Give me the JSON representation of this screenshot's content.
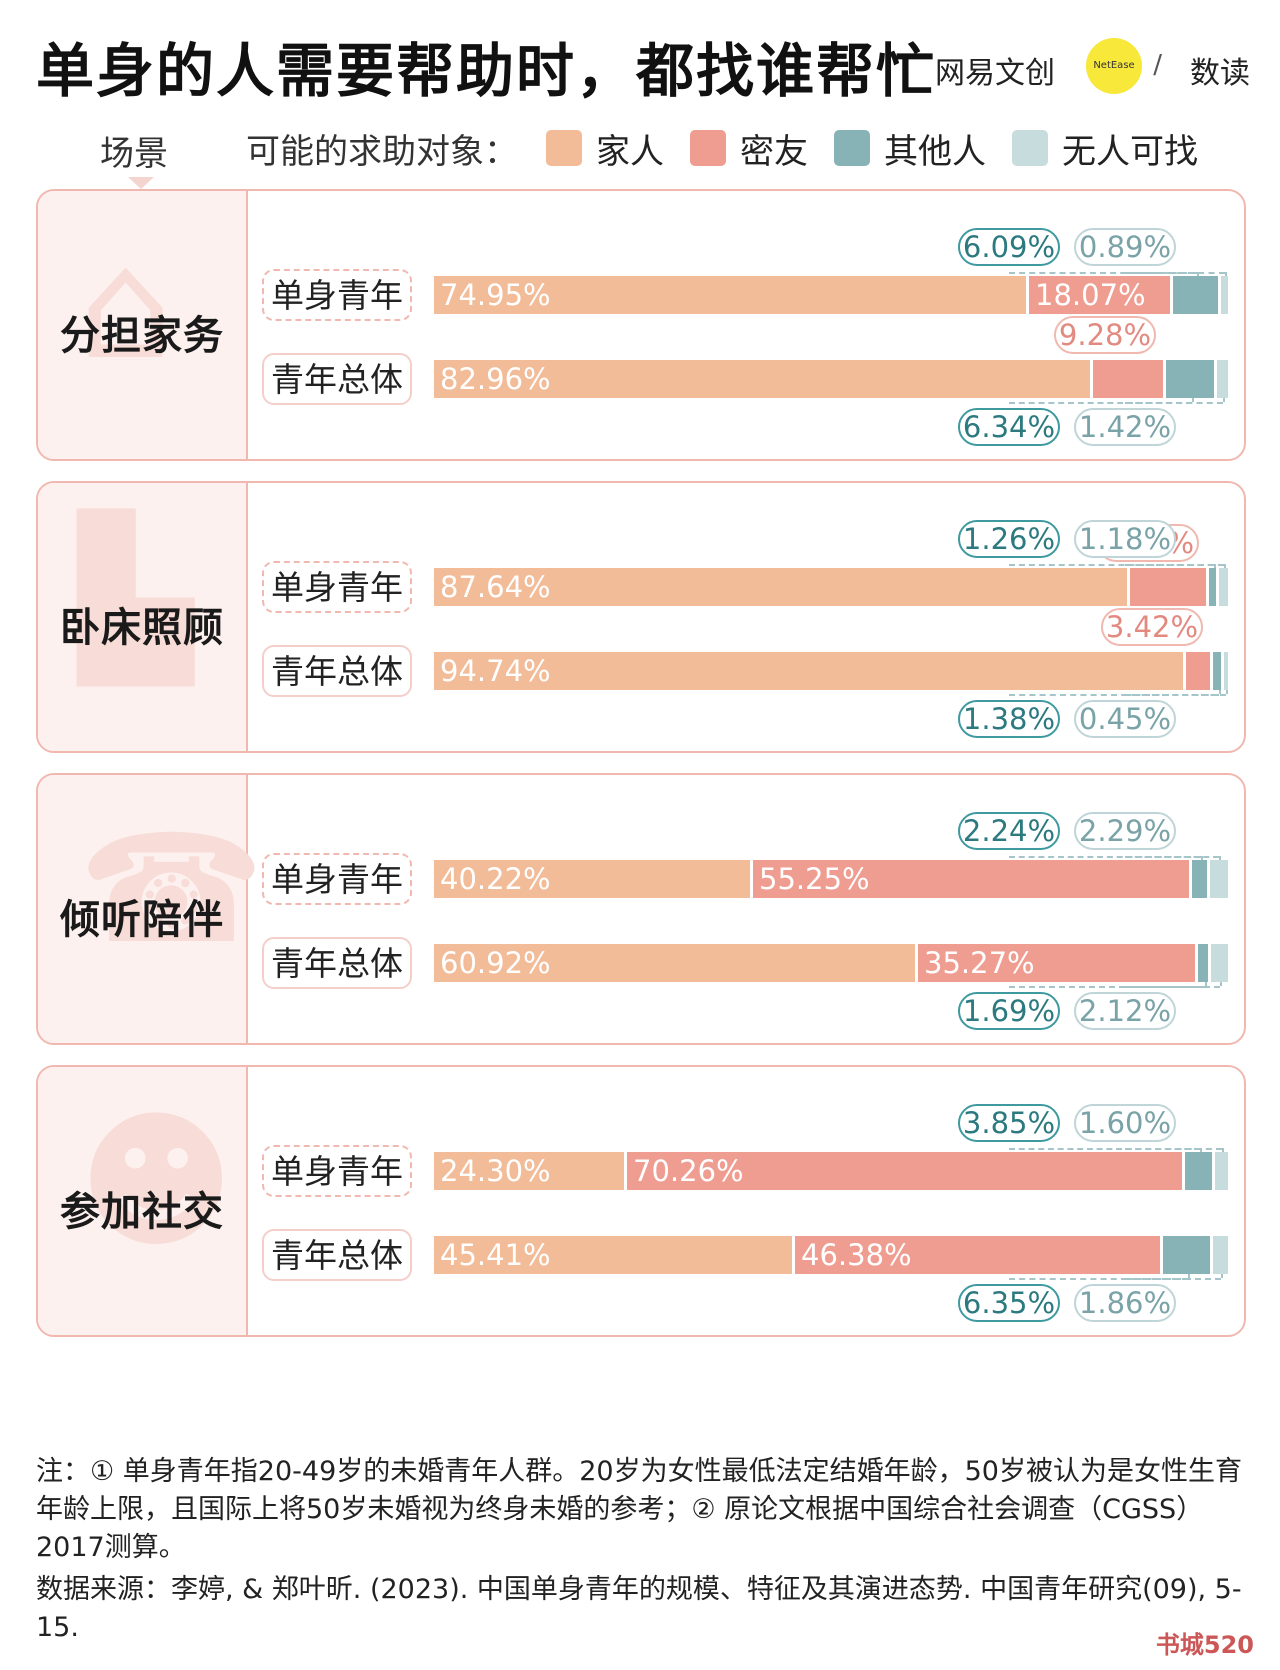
{
  "title": "单身的人需要帮助时，都找谁帮忙",
  "brand": {
    "name": "网易文创",
    "circle_text": "NetEase",
    "slash": "/",
    "sub": "数读"
  },
  "scene_label": "场景",
  "legend": {
    "title": "可能的求助对象：",
    "items": [
      {
        "name": "家人",
        "color": "#f2bc98"
      },
      {
        "name": "密友",
        "color": "#ef9d91"
      },
      {
        "name": "其他人",
        "color": "#87b3b6"
      },
      {
        "name": "无人可找",
        "color": "#c6dcdd"
      }
    ]
  },
  "chart_data": {
    "type": "bar",
    "stacked": true,
    "orientation": "horizontal",
    "unit": "%",
    "series_names": [
      "家人",
      "密友",
      "其他人",
      "无人可找"
    ],
    "panels": [
      {
        "scene": "分担家务",
        "icon": "hanger-icon",
        "groups": [
          {
            "name": "单身青年",
            "values": [
              74.95,
              18.07,
              6.09,
              0.89
            ],
            "labels": [
              "74.95%",
              "18.07%",
              "6.09%",
              "0.89%"
            ]
          },
          {
            "name": "青年总体",
            "values": [
              82.96,
              9.28,
              6.34,
              1.42
            ],
            "labels": [
              "82.96%",
              "9.28%",
              "6.34%",
              "1.42%"
            ]
          }
        ]
      },
      {
        "scene": "卧床照顾",
        "icon": "bed-icon",
        "groups": [
          {
            "name": "单身青年",
            "values": [
              87.64,
              9.91,
              1.26,
              1.18
            ],
            "labels": [
              "87.64%",
              "9.91%",
              "1.26%",
              "1.18%"
            ]
          },
          {
            "name": "青年总体",
            "values": [
              94.74,
              3.42,
              1.38,
              0.45
            ],
            "labels": [
              "94.74%",
              "3.42%",
              "1.38%",
              "0.45%"
            ]
          }
        ]
      },
      {
        "scene": "倾听陪伴",
        "icon": "phone-icon",
        "groups": [
          {
            "name": "单身青年",
            "values": [
              40.22,
              55.25,
              2.24,
              2.29
            ],
            "labels": [
              "40.22%",
              "55.25%",
              "2.24%",
              "2.29%"
            ]
          },
          {
            "name": "青年总体",
            "values": [
              60.92,
              35.27,
              1.69,
              2.12
            ],
            "labels": [
              "60.92%",
              "35.27%",
              "1.69%",
              "2.12%"
            ]
          }
        ]
      },
      {
        "scene": "参加社交",
        "icon": "people-icon",
        "groups": [
          {
            "name": "单身青年",
            "values": [
              24.3,
              70.26,
              3.85,
              1.6
            ],
            "labels": [
              "24.30%",
              "70.26%",
              "3.85%",
              "1.60%"
            ]
          },
          {
            "name": "青年总体",
            "values": [
              45.41,
              46.38,
              6.35,
              1.86
            ],
            "labels": [
              "45.41%",
              "46.38%",
              "6.35%",
              "1.86%"
            ]
          }
        ]
      }
    ]
  },
  "notes": {
    "note": "注：① 单身青年指20-49岁的未婚青年人群。20岁为女性最低法定结婚年龄，50岁被认为是女性生育年龄上限，且国际上将50岁未婚视为终身未婚的参考；② 原论文根据中国综合社会调查（CGSS）2017测算。",
    "source": "数据来源：李婷, & 郑叶昕. (2023). 中国单身青年的规模、特征及其演进态势. 中国青年研究(09), 5-15."
  },
  "watermark": "书城520"
}
